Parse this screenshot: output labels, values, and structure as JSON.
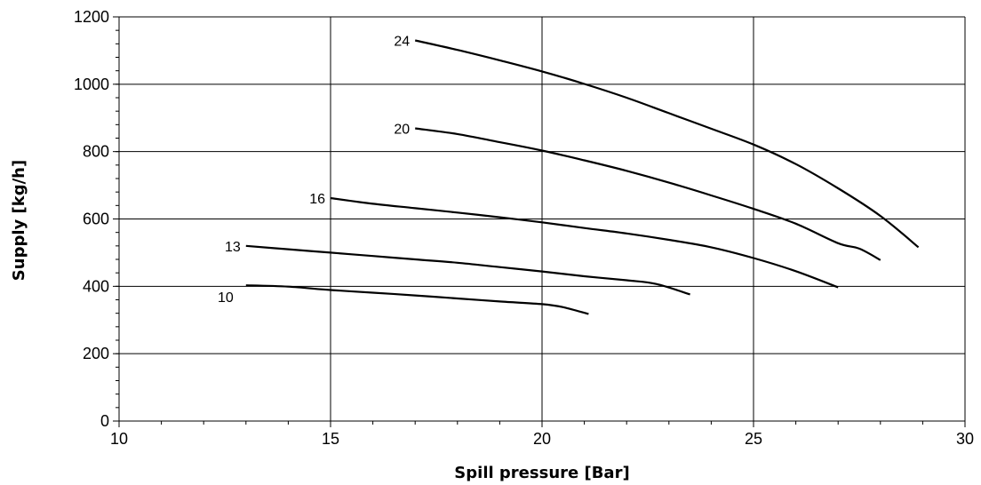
{
  "chart_data": {
    "type": "line",
    "title": "",
    "xlabel": "Spill pressure [Bar]",
    "ylabel": "Supply [kg/h]",
    "xlim": [
      10,
      30
    ],
    "ylim": [
      0,
      1200
    ],
    "x_ticks": [
      10,
      15,
      20,
      25,
      30
    ],
    "y_ticks": [
      0,
      200,
      400,
      600,
      800,
      1000,
      1200
    ],
    "grid": true,
    "legend": "none",
    "line_color": "#000000",
    "series": [
      {
        "name": "10",
        "x": [
          13.0,
          14.0,
          15.0,
          16.0,
          17.0,
          18.0,
          19.0,
          20.0,
          20.5,
          21.1
        ],
        "y": [
          403,
          399,
          389,
          381,
          373,
          364,
          355,
          347,
          338,
          318
        ]
      },
      {
        "name": "13",
        "x": [
          13.0,
          14.0,
          15.0,
          16.0,
          17.0,
          18.0,
          19.0,
          20.0,
          21.0,
          22.0,
          22.7,
          23.5
        ],
        "y": [
          520,
          510,
          500,
          490,
          480,
          470,
          457,
          444,
          430,
          418,
          407,
          376
        ]
      },
      {
        "name": "16",
        "x": [
          15.0,
          16.0,
          17.0,
          18.0,
          19.0,
          20.0,
          21.0,
          22.0,
          23.0,
          24.0,
          25.0,
          26.0,
          27.0
        ],
        "y": [
          662,
          645,
          632,
          619,
          605,
          590,
          573,
          557,
          538,
          516,
          484,
          445,
          397
        ]
      },
      {
        "name": "20",
        "x": [
          17.0,
          18.0,
          19.0,
          20.0,
          21.0,
          22.0,
          23.0,
          24.0,
          25.0,
          26.0,
          27.0,
          27.5,
          28.0
        ],
        "y": [
          869,
          852,
          828,
          803,
          774,
          743,
          708,
          670,
          630,
          586,
          528,
          512,
          478
        ]
      },
      {
        "name": "24",
        "x": [
          17.0,
          18.0,
          19.0,
          20.0,
          21.0,
          22.0,
          23.0,
          24.0,
          25.0,
          26.0,
          27.0,
          28.0,
          28.9
        ],
        "y": [
          1130,
          1102,
          1071,
          1038,
          1001,
          960,
          914,
          868,
          821,
          763,
          691,
          609,
          516
        ]
      }
    ]
  }
}
